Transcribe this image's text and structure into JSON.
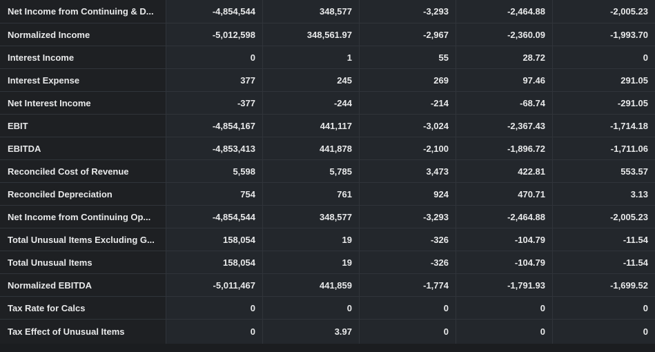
{
  "rows": [
    {
      "label": "Net Income from Continuing & D...",
      "values": [
        "-4,854,544",
        "348,577",
        "-3,293",
        "-2,464.88",
        "-2,005.23"
      ]
    },
    {
      "label": "Normalized Income",
      "values": [
        "-5,012,598",
        "348,561.97",
        "-2,967",
        "-2,360.09",
        "-1,993.70"
      ]
    },
    {
      "label": "Interest Income",
      "values": [
        "0",
        "1",
        "55",
        "28.72",
        "0"
      ]
    },
    {
      "label": "Interest Expense",
      "values": [
        "377",
        "245",
        "269",
        "97.46",
        "291.05"
      ]
    },
    {
      "label": "Net Interest Income",
      "values": [
        "-377",
        "-244",
        "-214",
        "-68.74",
        "-291.05"
      ]
    },
    {
      "label": "EBIT",
      "values": [
        "-4,854,167",
        "441,117",
        "-3,024",
        "-2,367.43",
        "-1,714.18"
      ]
    },
    {
      "label": "EBITDA",
      "values": [
        "-4,853,413",
        "441,878",
        "-2,100",
        "-1,896.72",
        "-1,711.06"
      ]
    },
    {
      "label": "Reconciled Cost of Revenue",
      "values": [
        "5,598",
        "5,785",
        "3,473",
        "422.81",
        "553.57"
      ]
    },
    {
      "label": "Reconciled Depreciation",
      "values": [
        "754",
        "761",
        "924",
        "470.71",
        "3.13"
      ]
    },
    {
      "label": "Net Income from Continuing Op...",
      "values": [
        "-4,854,544",
        "348,577",
        "-3,293",
        "-2,464.88",
        "-2,005.23"
      ]
    },
    {
      "label": "Total Unusual Items Excluding G...",
      "values": [
        "158,054",
        "19",
        "-326",
        "-104.79",
        "-11.54"
      ]
    },
    {
      "label": "Total Unusual Items",
      "values": [
        "158,054",
        "19",
        "-326",
        "-104.79",
        "-11.54"
      ]
    },
    {
      "label": "Normalized EBITDA",
      "values": [
        "-5,011,467",
        "441,859",
        "-1,774",
        "-1,791.93",
        "-1,699.52"
      ]
    },
    {
      "label": "Tax Rate for Calcs",
      "values": [
        "0",
        "0",
        "0",
        "0",
        "0"
      ]
    },
    {
      "label": "Tax Effect of Unusual Items",
      "values": [
        "0",
        "3.97",
        "0",
        "0",
        "0"
      ]
    }
  ]
}
